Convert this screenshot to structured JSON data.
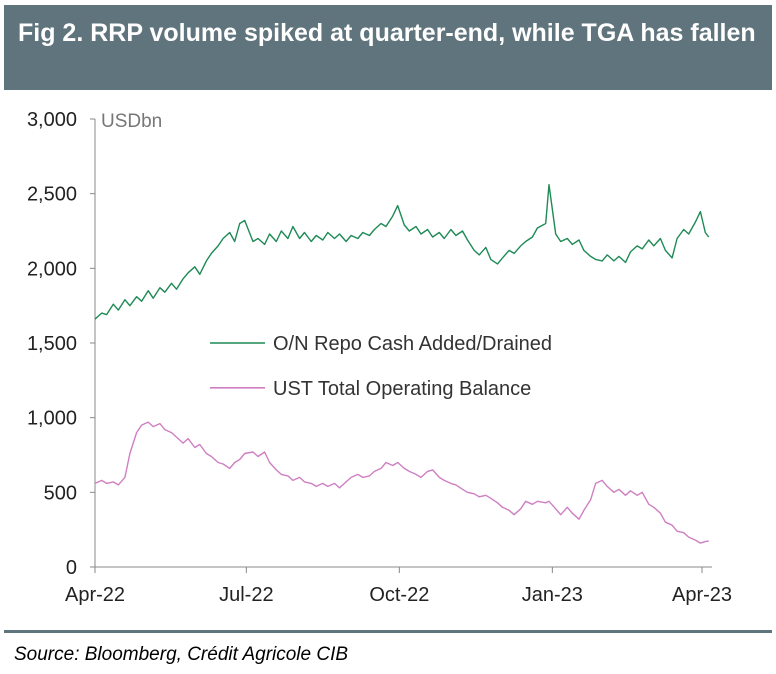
{
  "header": {
    "title": "Fig 2. RRP volume spiked at quarter-end, while TGA has fallen"
  },
  "footer": {
    "source": "Source: Bloomberg, Crédit Agricole CIB"
  },
  "chart_data": {
    "type": "line",
    "title": "Fig 2. RRP volume spiked at quarter-end, while TGA has fallen",
    "ylabel": "USDbn",
    "xlabel": "",
    "ylim": [
      0,
      3000
    ],
    "yticks": [
      0,
      500,
      1000,
      1500,
      2000,
      2500,
      3000
    ],
    "ytick_labels": [
      "0",
      "500",
      "1,000",
      "1,500",
      "2,000",
      "2,500",
      "3,000"
    ],
    "xticks": [
      "2022-04-01",
      "2022-07-01",
      "2022-10-01",
      "2023-01-01",
      "2023-04-01"
    ],
    "xtick_labels": [
      "Apr-22",
      "Jul-22",
      "Oct-22",
      "Jan-23",
      "Apr-23"
    ],
    "xlim": [
      "2022-04-01",
      "2023-04-07"
    ],
    "grid": false,
    "legend_position": "center",
    "series": [
      {
        "name": "O/N Repo Cash Added/Drained",
        "color": "#1e8a55",
        "points": [
          [
            "2022-04-01",
            1660
          ],
          [
            "2022-04-05",
            1700
          ],
          [
            "2022-04-08",
            1690
          ],
          [
            "2022-04-12",
            1760
          ],
          [
            "2022-04-15",
            1720
          ],
          [
            "2022-04-19",
            1790
          ],
          [
            "2022-04-22",
            1750
          ],
          [
            "2022-04-26",
            1810
          ],
          [
            "2022-04-29",
            1780
          ],
          [
            "2022-05-03",
            1850
          ],
          [
            "2022-05-06",
            1800
          ],
          [
            "2022-05-10",
            1870
          ],
          [
            "2022-05-13",
            1840
          ],
          [
            "2022-05-17",
            1900
          ],
          [
            "2022-05-20",
            1860
          ],
          [
            "2022-05-24",
            1930
          ],
          [
            "2022-05-27",
            1970
          ],
          [
            "2022-05-31",
            2010
          ],
          [
            "2022-06-03",
            1960
          ],
          [
            "2022-06-07",
            2050
          ],
          [
            "2022-06-10",
            2100
          ],
          [
            "2022-06-14",
            2150
          ],
          [
            "2022-06-17",
            2200
          ],
          [
            "2022-06-21",
            2240
          ],
          [
            "2022-06-24",
            2180
          ],
          [
            "2022-06-27",
            2300
          ],
          [
            "2022-06-30",
            2320
          ],
          [
            "2022-07-05",
            2180
          ],
          [
            "2022-07-08",
            2200
          ],
          [
            "2022-07-12",
            2160
          ],
          [
            "2022-07-15",
            2230
          ],
          [
            "2022-07-19",
            2180
          ],
          [
            "2022-07-22",
            2250
          ],
          [
            "2022-07-26",
            2200
          ],
          [
            "2022-07-29",
            2280
          ],
          [
            "2022-08-02",
            2200
          ],
          [
            "2022-08-05",
            2240
          ],
          [
            "2022-08-09",
            2180
          ],
          [
            "2022-08-12",
            2220
          ],
          [
            "2022-08-16",
            2190
          ],
          [
            "2022-08-19",
            2240
          ],
          [
            "2022-08-23",
            2200
          ],
          [
            "2022-08-26",
            2230
          ],
          [
            "2022-08-30",
            2180
          ],
          [
            "2022-09-02",
            2220
          ],
          [
            "2022-09-06",
            2200
          ],
          [
            "2022-09-09",
            2240
          ],
          [
            "2022-09-13",
            2220
          ],
          [
            "2022-09-16",
            2260
          ],
          [
            "2022-09-20",
            2300
          ],
          [
            "2022-09-23",
            2280
          ],
          [
            "2022-09-27",
            2350
          ],
          [
            "2022-09-30",
            2420
          ],
          [
            "2022-10-04",
            2290
          ],
          [
            "2022-10-07",
            2250
          ],
          [
            "2022-10-11",
            2280
          ],
          [
            "2022-10-14",
            2230
          ],
          [
            "2022-10-18",
            2260
          ],
          [
            "2022-10-21",
            2210
          ],
          [
            "2022-10-25",
            2240
          ],
          [
            "2022-10-28",
            2200
          ],
          [
            "2022-11-01",
            2260
          ],
          [
            "2022-11-04",
            2220
          ],
          [
            "2022-11-08",
            2250
          ],
          [
            "2022-11-11",
            2190
          ],
          [
            "2022-11-15",
            2120
          ],
          [
            "2022-11-18",
            2090
          ],
          [
            "2022-11-22",
            2140
          ],
          [
            "2022-11-25",
            2060
          ],
          [
            "2022-11-29",
            2030
          ],
          [
            "2022-12-02",
            2070
          ],
          [
            "2022-12-06",
            2120
          ],
          [
            "2022-12-09",
            2100
          ],
          [
            "2022-12-13",
            2150
          ],
          [
            "2022-12-16",
            2180
          ],
          [
            "2022-12-20",
            2210
          ],
          [
            "2022-12-23",
            2270
          ],
          [
            "2022-12-28",
            2300
          ],
          [
            "2022-12-30",
            2560
          ],
          [
            "2023-01-03",
            2230
          ],
          [
            "2023-01-06",
            2180
          ],
          [
            "2023-01-10",
            2200
          ],
          [
            "2023-01-13",
            2160
          ],
          [
            "2023-01-17",
            2190
          ],
          [
            "2023-01-20",
            2120
          ],
          [
            "2023-01-24",
            2080
          ],
          [
            "2023-01-27",
            2060
          ],
          [
            "2023-01-31",
            2050
          ],
          [
            "2023-02-03",
            2090
          ],
          [
            "2023-02-07",
            2050
          ],
          [
            "2023-02-10",
            2080
          ],
          [
            "2023-02-14",
            2040
          ],
          [
            "2023-02-17",
            2110
          ],
          [
            "2023-02-21",
            2150
          ],
          [
            "2023-02-24",
            2130
          ],
          [
            "2023-02-28",
            2190
          ],
          [
            "2023-03-03",
            2150
          ],
          [
            "2023-03-07",
            2200
          ],
          [
            "2023-03-10",
            2120
          ],
          [
            "2023-03-14",
            2070
          ],
          [
            "2023-03-17",
            2200
          ],
          [
            "2023-03-21",
            2260
          ],
          [
            "2023-03-24",
            2230
          ],
          [
            "2023-03-28",
            2310
          ],
          [
            "2023-03-31",
            2380
          ],
          [
            "2023-04-03",
            2240
          ],
          [
            "2023-04-05",
            2210
          ]
        ]
      },
      {
        "name": "UST Total Operating Balance",
        "color": "#cf7fc2",
        "points": [
          [
            "2022-04-01",
            560
          ],
          [
            "2022-04-05",
            580
          ],
          [
            "2022-04-08",
            560
          ],
          [
            "2022-04-12",
            570
          ],
          [
            "2022-04-15",
            550
          ],
          [
            "2022-04-19",
            600
          ],
          [
            "2022-04-22",
            760
          ],
          [
            "2022-04-26",
            900
          ],
          [
            "2022-04-29",
            950
          ],
          [
            "2022-05-03",
            970
          ],
          [
            "2022-05-06",
            940
          ],
          [
            "2022-05-10",
            960
          ],
          [
            "2022-05-13",
            920
          ],
          [
            "2022-05-17",
            900
          ],
          [
            "2022-05-20",
            870
          ],
          [
            "2022-05-24",
            830
          ],
          [
            "2022-05-27",
            860
          ],
          [
            "2022-05-31",
            800
          ],
          [
            "2022-06-03",
            820
          ],
          [
            "2022-06-07",
            760
          ],
          [
            "2022-06-10",
            740
          ],
          [
            "2022-06-14",
            700
          ],
          [
            "2022-06-17",
            690
          ],
          [
            "2022-06-21",
            660
          ],
          [
            "2022-06-24",
            700
          ],
          [
            "2022-06-27",
            720
          ],
          [
            "2022-06-30",
            760
          ],
          [
            "2022-07-05",
            770
          ],
          [
            "2022-07-08",
            740
          ],
          [
            "2022-07-12",
            770
          ],
          [
            "2022-07-15",
            700
          ],
          [
            "2022-07-19",
            650
          ],
          [
            "2022-07-22",
            620
          ],
          [
            "2022-07-26",
            610
          ],
          [
            "2022-07-29",
            580
          ],
          [
            "2022-08-02",
            600
          ],
          [
            "2022-08-05",
            570
          ],
          [
            "2022-08-09",
            560
          ],
          [
            "2022-08-12",
            540
          ],
          [
            "2022-08-16",
            560
          ],
          [
            "2022-08-19",
            540
          ],
          [
            "2022-08-23",
            560
          ],
          [
            "2022-08-26",
            530
          ],
          [
            "2022-08-30",
            570
          ],
          [
            "2022-09-02",
            600
          ],
          [
            "2022-09-06",
            620
          ],
          [
            "2022-09-09",
            600
          ],
          [
            "2022-09-13",
            610
          ],
          [
            "2022-09-16",
            640
          ],
          [
            "2022-09-20",
            660
          ],
          [
            "2022-09-23",
            700
          ],
          [
            "2022-09-27",
            680
          ],
          [
            "2022-09-30",
            700
          ],
          [
            "2022-10-04",
            660
          ],
          [
            "2022-10-07",
            640
          ],
          [
            "2022-10-11",
            620
          ],
          [
            "2022-10-14",
            600
          ],
          [
            "2022-10-18",
            640
          ],
          [
            "2022-10-21",
            650
          ],
          [
            "2022-10-25",
            600
          ],
          [
            "2022-10-28",
            580
          ],
          [
            "2022-11-01",
            560
          ],
          [
            "2022-11-04",
            550
          ],
          [
            "2022-11-08",
            520
          ],
          [
            "2022-11-11",
            500
          ],
          [
            "2022-11-15",
            490
          ],
          [
            "2022-11-18",
            470
          ],
          [
            "2022-11-22",
            480
          ],
          [
            "2022-11-25",
            460
          ],
          [
            "2022-11-29",
            430
          ],
          [
            "2022-12-02",
            400
          ],
          [
            "2022-12-06",
            380
          ],
          [
            "2022-12-09",
            350
          ],
          [
            "2022-12-13",
            390
          ],
          [
            "2022-12-16",
            440
          ],
          [
            "2022-12-20",
            420
          ],
          [
            "2022-12-23",
            440
          ],
          [
            "2022-12-28",
            430
          ],
          [
            "2022-12-30",
            440
          ],
          [
            "2023-01-03",
            390
          ],
          [
            "2023-01-06",
            350
          ],
          [
            "2023-01-10",
            400
          ],
          [
            "2023-01-13",
            360
          ],
          [
            "2023-01-17",
            320
          ],
          [
            "2023-01-20",
            380
          ],
          [
            "2023-01-24",
            450
          ],
          [
            "2023-01-27",
            560
          ],
          [
            "2023-01-31",
            580
          ],
          [
            "2023-02-03",
            540
          ],
          [
            "2023-02-07",
            500
          ],
          [
            "2023-02-10",
            520
          ],
          [
            "2023-02-14",
            480
          ],
          [
            "2023-02-17",
            510
          ],
          [
            "2023-02-21",
            480
          ],
          [
            "2023-02-24",
            500
          ],
          [
            "2023-02-28",
            420
          ],
          [
            "2023-03-03",
            400
          ],
          [
            "2023-03-07",
            360
          ],
          [
            "2023-03-10",
            300
          ],
          [
            "2023-03-14",
            280
          ],
          [
            "2023-03-17",
            240
          ],
          [
            "2023-03-21",
            230
          ],
          [
            "2023-03-24",
            200
          ],
          [
            "2023-03-28",
            180
          ],
          [
            "2023-03-31",
            160
          ],
          [
            "2023-04-03",
            170
          ],
          [
            "2023-04-05",
            175
          ]
        ]
      }
    ]
  }
}
